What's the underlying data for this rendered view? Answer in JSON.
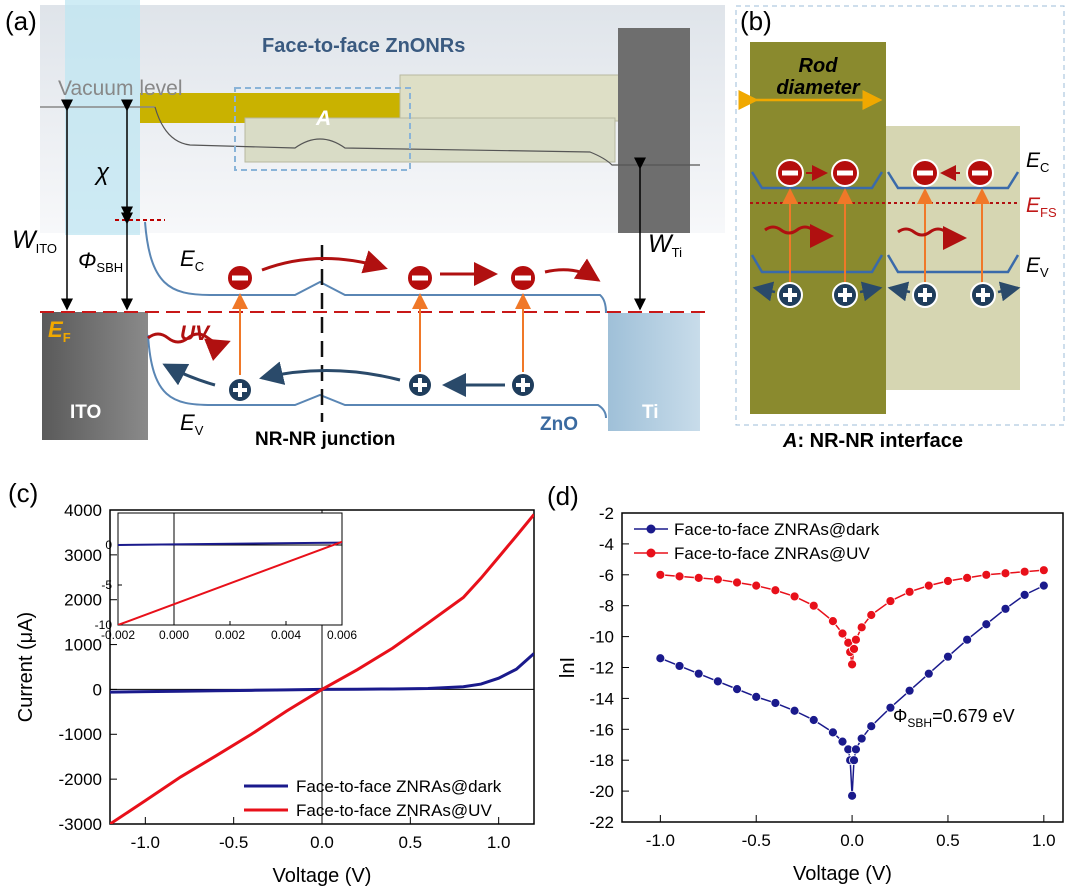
{
  "panel_a": {
    "label": "(a)",
    "title": "Face-to-face ZnONRs",
    "vacuum_level": "Vacuum level",
    "region": "A",
    "chi": "χ",
    "w_ito": {
      "main": "W",
      "sub": "ITO"
    },
    "phi_sbh": {
      "main": "Φ",
      "sub": "SBH"
    },
    "ec": {
      "main": "E",
      "sub": "C"
    },
    "ef": {
      "main": "E",
      "sub": "F"
    },
    "uv": "UV",
    "ito": "ITO",
    "ev": {
      "main": "E",
      "sub": "V"
    },
    "junction": "NR-NR junction",
    "zno": "ZnO",
    "ti": "Ti",
    "w_ti": {
      "main": "W",
      "sub": "Ti"
    }
  },
  "panel_b": {
    "label": "(b)",
    "rod_diameter": [
      "Rod",
      "diameter"
    ],
    "ec": {
      "main": "E",
      "sub": "C"
    },
    "efs": {
      "main": "E",
      "sub": "FS"
    },
    "ev": {
      "main": "E",
      "sub": "V"
    },
    "caption": {
      "italic": "A",
      "text": ": NR-NR interface"
    }
  },
  "chart_data": [
    {
      "type": "line",
      "label": "(c)",
      "xlabel": "Voltage (V)",
      "ylabel": "Current (μA)",
      "xlim": [
        -1.2,
        1.2
      ],
      "xticks": [
        {
          "value": -1,
          "label": "-1.0"
        },
        -0.5,
        {
          "value": 0,
          "label": "0.0"
        },
        0.5,
        {
          "value": 1,
          "label": "1.0"
        }
      ],
      "ylim": [
        -3000,
        4000
      ],
      "yticks": [
        -3000,
        -2000,
        -1000,
        0,
        1000,
        2000,
        3000,
        4000
      ],
      "zero_lines": true,
      "legend": "lower right",
      "x": [
        -1.2,
        -1.0,
        -0.8,
        -0.6,
        -0.4,
        -0.2,
        0,
        0.2,
        0.4,
        0.6,
        0.8,
        0.9,
        1.0,
        1.1,
        1.2
      ],
      "series": [
        {
          "name": "Face-to-face ZNRAs@dark",
          "color": "#1a1a8c",
          "values": [
            -60,
            -50,
            -40,
            -30,
            -20,
            -10,
            0,
            5,
            10,
            20,
            60,
            120,
            250,
            450,
            800
          ]
        },
        {
          "name": "Face-to-face ZNRAs@UV",
          "color": "#e8101a",
          "values": [
            -3000,
            -2480,
            -1950,
            -1480,
            -1000,
            -480,
            0,
            440,
            920,
            1480,
            2050,
            2480,
            2950,
            3420,
            3900
          ]
        }
      ],
      "inset": {
        "type": "line",
        "xlim": [
          -0.002,
          0.006
        ],
        "xticks": [
          -0.002,
          {
            "value": 0,
            "label": "0.000"
          },
          0.002,
          0.004,
          0.006
        ],
        "ylim": [
          -10,
          4
        ],
        "yticks": [
          -10,
          -5,
          0
        ],
        "zero_lines": true,
        "x": [
          -0.002,
          0.006
        ],
        "series": [
          {
            "color": "#1a1a8c",
            "values": [
              0,
              0.3
            ]
          },
          {
            "color": "#e8101a",
            "values": [
              -10,
              0.4
            ]
          }
        ]
      }
    },
    {
      "type": "line",
      "label": "(d)",
      "xlabel": "Voltage (V)",
      "ylabel": "lnI",
      "markers": true,
      "legend": "upper left",
      "xlim": [
        -1.2,
        1.1
      ],
      "xticks": [
        {
          "value": -1,
          "label": "-1.0"
        },
        -0.5,
        {
          "value": 0,
          "label": "0.0"
        },
        0.5,
        {
          "value": 1,
          "label": "1.0"
        }
      ],
      "ylim": [
        -22,
        -2
      ],
      "yticks": [
        -22,
        -20,
        -18,
        -16,
        -14,
        -12,
        -10,
        -8,
        -6,
        -4,
        -2
      ],
      "annotation": {
        "main": "Φ",
        "sub": "SBH",
        "rest": "=0.679 eV"
      },
      "x": [
        -1.0,
        -0.9,
        -0.8,
        -0.7,
        -0.6,
        -0.5,
        -0.4,
        -0.3,
        -0.2,
        -0.1,
        -0.05,
        -0.02,
        -0.01,
        0,
        0.01,
        0.02,
        0.05,
        0.1,
        0.2,
        0.3,
        0.4,
        0.5,
        0.6,
        0.7,
        0.8,
        0.9,
        1.0
      ],
      "series": [
        {
          "name": "Face-to-face ZNRAs@dark",
          "color": "#1a1a8c",
          "values": [
            -11.4,
            -11.9,
            -12.4,
            -12.9,
            -13.4,
            -13.9,
            -14.3,
            -14.8,
            -15.4,
            -16.2,
            -16.8,
            -17.3,
            -18.0,
            -20.3,
            -18.0,
            -17.3,
            -16.6,
            -15.8,
            -14.6,
            -13.5,
            -12.4,
            -11.3,
            -10.2,
            -9.2,
            -8.2,
            -7.3,
            -6.7
          ]
        },
        {
          "name": "Face-to-face ZNRAs@UV",
          "color": "#e8101a",
          "values": [
            -6.0,
            -6.1,
            -6.2,
            -6.3,
            -6.5,
            -6.7,
            -7.0,
            -7.4,
            -8.0,
            -9.0,
            -9.8,
            -10.4,
            -11.0,
            -11.8,
            -10.8,
            -10.2,
            -9.4,
            -8.6,
            -7.7,
            -7.1,
            -6.7,
            -6.4,
            -6.2,
            -6.0,
            -5.9,
            -5.8,
            -5.7
          ]
        }
      ]
    }
  ]
}
